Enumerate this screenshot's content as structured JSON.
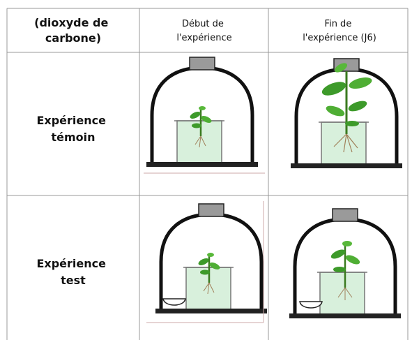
{
  "table": {
    "header": [
      [
        "(dioxyde de",
        "carbone)"
      ],
      [
        "Début de",
        "l'expérience"
      ],
      [
        "Fin de",
        "l'expérience (J6)"
      ]
    ],
    "rows": [
      [
        "Expérience",
        "témoin"
      ],
      [
        "Expérience",
        "test"
      ]
    ]
  }
}
